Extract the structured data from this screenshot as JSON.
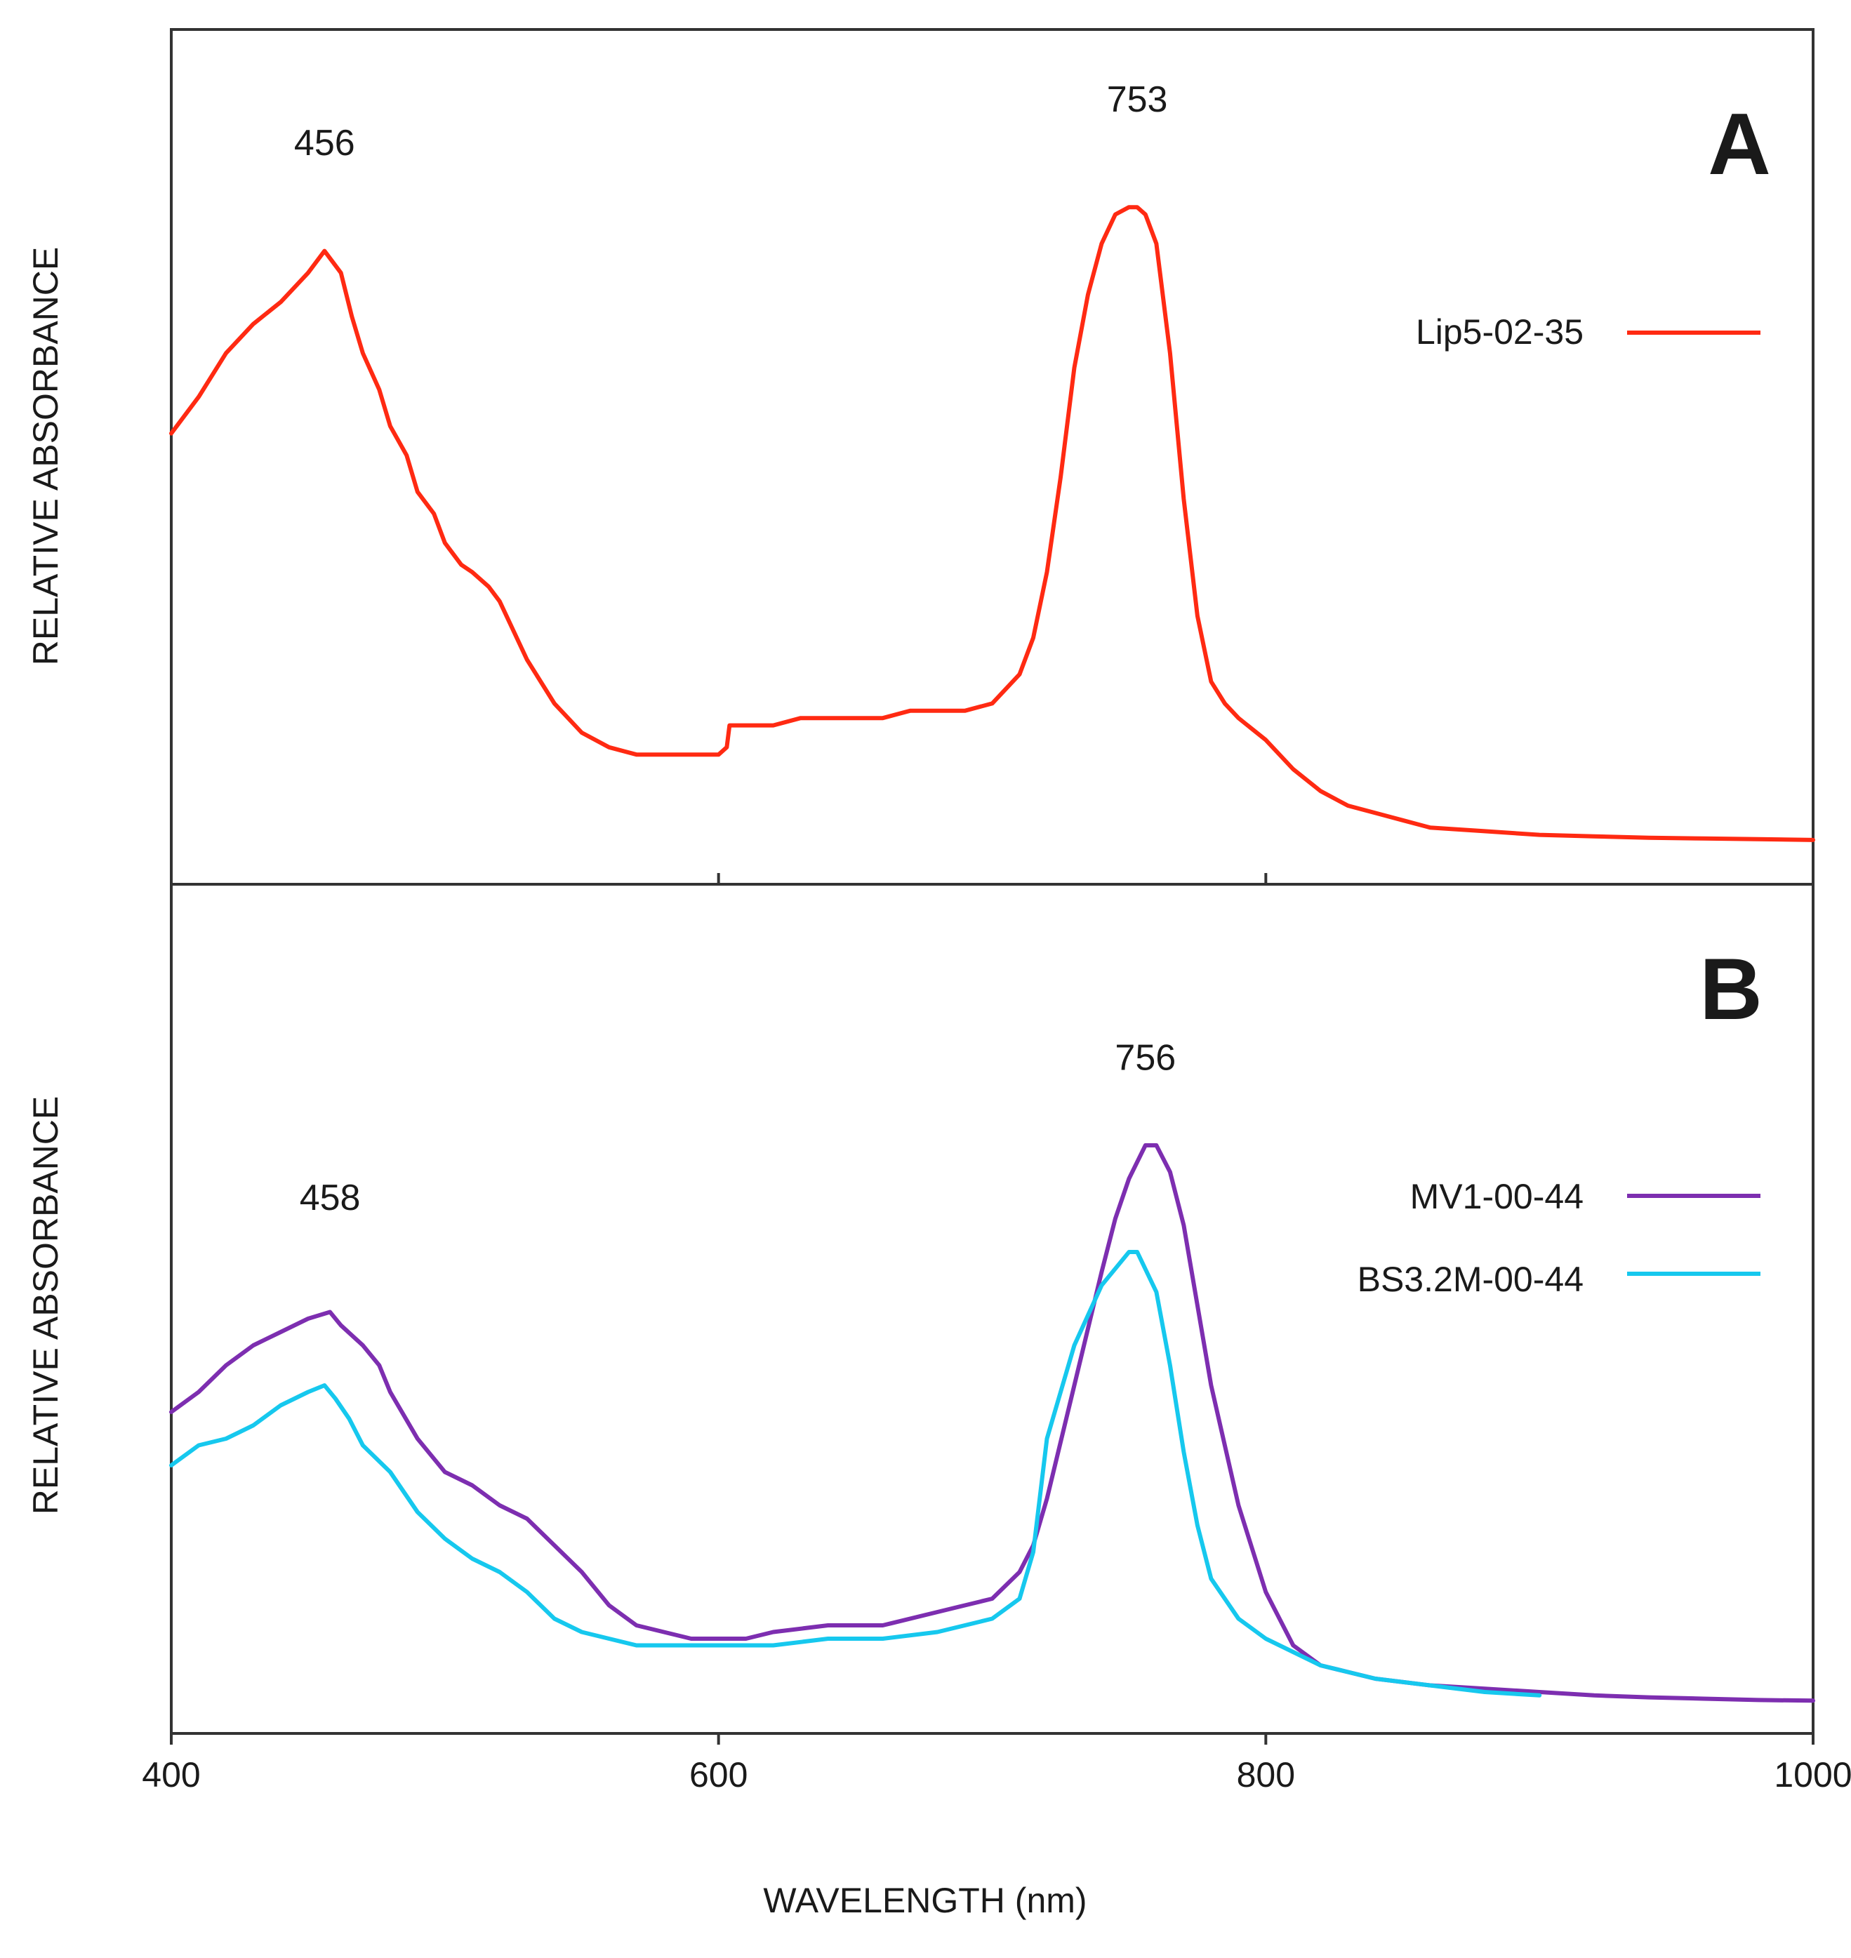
{
  "chart_data": [
    {
      "panel": "A",
      "type": "line",
      "xlabel": "WAVELENGTH (nm)",
      "ylabel": "RELATIVE ABSORBANCE",
      "xlim": [
        400,
        1000
      ],
      "ylim": [
        0,
        1
      ],
      "xticks": [
        400,
        600,
        800,
        1000
      ],
      "grid": false,
      "legend_position": "top-right",
      "annotations": [
        {
          "text": "456",
          "x": 456,
          "y": 0.92
        },
        {
          "text": "753",
          "x": 753,
          "y": 0.98
        }
      ],
      "series": [
        {
          "name": "Lip5-02-35",
          "color": "#ff2a12",
          "x": [
            400,
            410,
            420,
            430,
            440,
            450,
            456,
            462,
            466,
            470,
            476,
            480,
            486,
            490,
            496,
            500,
            506,
            510,
            516,
            520,
            530,
            540,
            550,
            560,
            570,
            575,
            580,
            590,
            600,
            603,
            604,
            610,
            620,
            630,
            640,
            650,
            660,
            670,
            680,
            690,
            700,
            710,
            715,
            720,
            725,
            730,
            735,
            740,
            745,
            750,
            753,
            756,
            760,
            765,
            770,
            775,
            780,
            785,
            790,
            800,
            810,
            820,
            830,
            840,
            850,
            860,
            880,
            900,
            920,
            940,
            960,
            980,
            1000
          ],
          "y": [
            0.56,
            0.61,
            0.67,
            0.71,
            0.74,
            0.78,
            0.81,
            0.78,
            0.72,
            0.67,
            0.62,
            0.57,
            0.53,
            0.48,
            0.45,
            0.41,
            0.38,
            0.37,
            0.35,
            0.33,
            0.25,
            0.19,
            0.15,
            0.13,
            0.12,
            0.12,
            0.12,
            0.12,
            0.12,
            0.13,
            0.16,
            0.16,
            0.16,
            0.17,
            0.17,
            0.17,
            0.17,
            0.18,
            0.18,
            0.18,
            0.19,
            0.23,
            0.28,
            0.37,
            0.5,
            0.65,
            0.75,
            0.82,
            0.86,
            0.87,
            0.87,
            0.86,
            0.82,
            0.67,
            0.47,
            0.31,
            0.22,
            0.19,
            0.17,
            0.14,
            0.1,
            0.07,
            0.05,
            0.04,
            0.03,
            0.02,
            0.015,
            0.01,
            0.008,
            0.006,
            0.005,
            0.004,
            0.003
          ]
        }
      ]
    },
    {
      "panel": "B",
      "type": "line",
      "xlabel": "WAVELENGTH (nm)",
      "ylabel": "RELATIVE ABSORBANCE",
      "xlim": [
        400,
        1000
      ],
      "ylim": [
        0,
        1
      ],
      "xticks": [
        400,
        600,
        800,
        1000
      ],
      "tick_labels": [
        "400",
        "600",
        "800",
        "1000"
      ],
      "grid": false,
      "legend_position": "middle-right",
      "annotations": [
        {
          "text": "458",
          "x": 458,
          "y": 0.72
        },
        {
          "text": "756",
          "x": 756,
          "y": 0.93
        }
      ],
      "series": [
        {
          "name": "MV1-00-44",
          "color": "#7d2eb0",
          "x": [
            400,
            410,
            420,
            430,
            440,
            450,
            458,
            462,
            470,
            476,
            480,
            490,
            500,
            510,
            520,
            530,
            540,
            550,
            560,
            570,
            580,
            590,
            600,
            610,
            620,
            640,
            660,
            680,
            690,
            700,
            710,
            715,
            720,
            730,
            740,
            745,
            750,
            756,
            760,
            765,
            770,
            775,
            780,
            790,
            800,
            810,
            820,
            830,
            840,
            860,
            880,
            900,
            920,
            940,
            960,
            980,
            1000
          ],
          "y": [
            0.44,
            0.47,
            0.51,
            0.54,
            0.56,
            0.58,
            0.59,
            0.57,
            0.54,
            0.51,
            0.47,
            0.4,
            0.35,
            0.33,
            0.3,
            0.28,
            0.24,
            0.2,
            0.15,
            0.12,
            0.11,
            0.1,
            0.1,
            0.1,
            0.11,
            0.12,
            0.12,
            0.14,
            0.15,
            0.16,
            0.2,
            0.24,
            0.31,
            0.48,
            0.65,
            0.73,
            0.79,
            0.84,
            0.84,
            0.8,
            0.72,
            0.6,
            0.48,
            0.3,
            0.17,
            0.09,
            0.06,
            0.05,
            0.04,
            0.03,
            0.025,
            0.02,
            0.015,
            0.012,
            0.01,
            0.008,
            0.007
          ]
        },
        {
          "name": "BS3.2M-00-44",
          "color": "#16c8ee",
          "x": [
            400,
            410,
            420,
            430,
            440,
            450,
            456,
            460,
            465,
            470,
            480,
            490,
            500,
            510,
            520,
            530,
            540,
            550,
            560,
            570,
            580,
            590,
            600,
            610,
            620,
            640,
            660,
            680,
            700,
            710,
            715,
            720,
            730,
            740,
            750,
            753,
            760,
            765,
            770,
            775,
            780,
            790,
            800,
            810,
            820,
            830,
            840,
            860,
            880,
            900
          ],
          "y": [
            0.36,
            0.39,
            0.4,
            0.42,
            0.45,
            0.47,
            0.48,
            0.46,
            0.43,
            0.39,
            0.35,
            0.29,
            0.25,
            0.22,
            0.2,
            0.17,
            0.13,
            0.11,
            0.1,
            0.09,
            0.09,
            0.09,
            0.09,
            0.09,
            0.09,
            0.1,
            0.1,
            0.11,
            0.13,
            0.16,
            0.23,
            0.4,
            0.54,
            0.63,
            0.68,
            0.68,
            0.62,
            0.51,
            0.38,
            0.27,
            0.19,
            0.13,
            0.1,
            0.08,
            0.06,
            0.05,
            0.04,
            0.03,
            0.02,
            0.015
          ]
        }
      ]
    }
  ]
}
